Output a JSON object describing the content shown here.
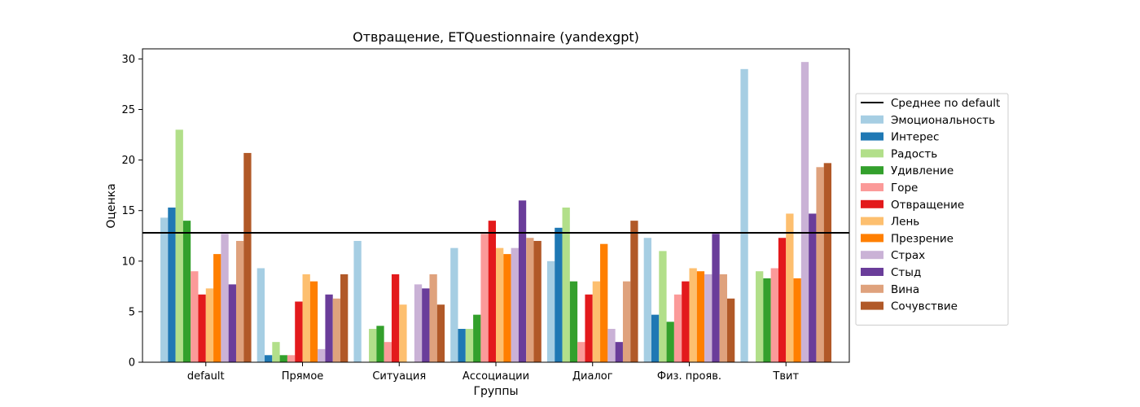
{
  "chart_data": {
    "type": "bar",
    "title": "Отвращение, ETQuestionnaire (yandexgpt)",
    "xlabel": "Группы",
    "ylabel": "Оценка",
    "ylim": [
      0,
      31
    ],
    "yticks": [
      0,
      5,
      10,
      15,
      20,
      25,
      30
    ],
    "grid": false,
    "legend_position": "right",
    "categories": [
      "default",
      "Прямое",
      "Ситуация",
      "Ассоциации",
      "Диалог",
      "Физ. прояв.",
      "Твит"
    ],
    "reference_line": {
      "name": "Среднее по default",
      "value": 12.8,
      "color": "#000000"
    },
    "series": [
      {
        "name": "Эмоциональность",
        "color": "#a6cee3",
        "values": [
          14.3,
          9.3,
          12.0,
          11.3,
          10.0,
          12.3,
          29.0
        ]
      },
      {
        "name": "Интерес",
        "color": "#1f78b4",
        "values": [
          15.3,
          0.7,
          0,
          3.3,
          13.3,
          4.7,
          0
        ]
      },
      {
        "name": "Радость",
        "color": "#b2df8a",
        "values": [
          23.0,
          2.0,
          3.3,
          3.3,
          15.3,
          11.0,
          9.0
        ]
      },
      {
        "name": "Удивление",
        "color": "#33a02c",
        "values": [
          14.0,
          0.7,
          3.6,
          4.7,
          8.0,
          4.0,
          8.3
        ]
      },
      {
        "name": "Горе",
        "color": "#fb9a99",
        "values": [
          9.0,
          0.7,
          2.0,
          12.7,
          2.0,
          6.7,
          9.3
        ]
      },
      {
        "name": "Отвращение",
        "color": "#e31a1c",
        "values": [
          6.7,
          6.0,
          8.7,
          14.0,
          6.7,
          8.0,
          12.3
        ]
      },
      {
        "name": "Лень",
        "color": "#fdbf6f",
        "values": [
          7.3,
          8.7,
          5.7,
          11.3,
          8.0,
          9.3,
          14.7
        ]
      },
      {
        "name": "Презрение",
        "color": "#ff7f00",
        "values": [
          10.7,
          8.0,
          0,
          10.7,
          11.7,
          9.0,
          8.3
        ]
      },
      {
        "name": "Страх",
        "color": "#cab2d6",
        "values": [
          12.7,
          1.3,
          7.7,
          11.3,
          3.3,
          8.7,
          29.7
        ]
      },
      {
        "name": "Стыд",
        "color": "#6a3d9a",
        "values": [
          7.7,
          6.7,
          7.3,
          16.0,
          2.0,
          12.7,
          14.7
        ]
      },
      {
        "name": "Вина",
        "color": "#dfa27d",
        "values": [
          12.0,
          6.3,
          8.7,
          12.3,
          8.0,
          8.7,
          19.3
        ]
      },
      {
        "name": "Сочувствие",
        "color": "#b15928",
        "values": [
          20.7,
          8.7,
          5.7,
          12.0,
          14.0,
          6.3,
          19.7
        ]
      }
    ]
  }
}
